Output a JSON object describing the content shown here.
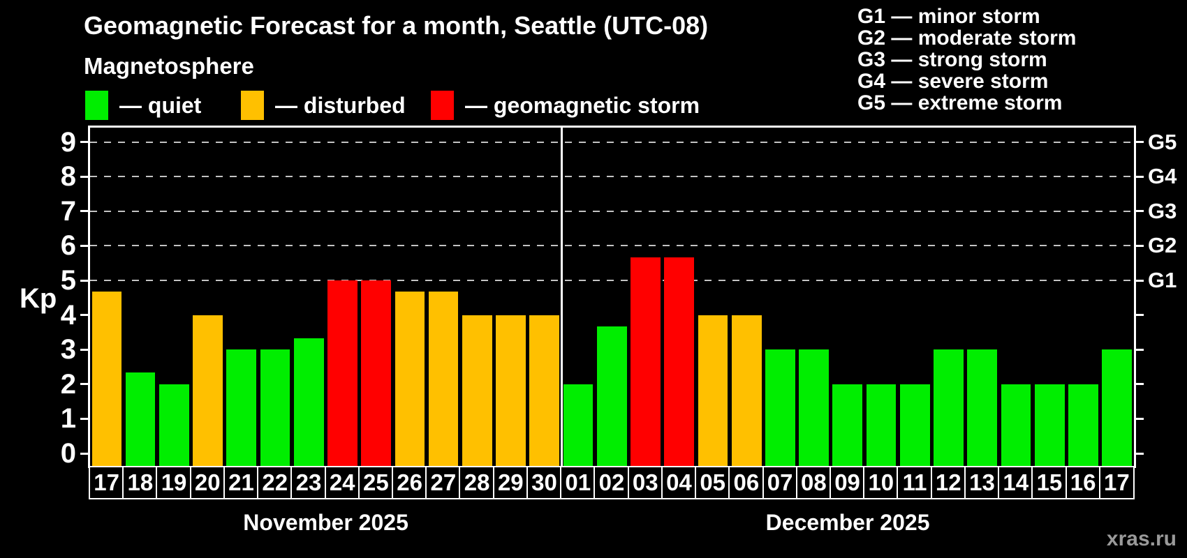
{
  "title": "Geomagnetic Forecast for a month, Seattle (UTC-08)",
  "subtitle": "Magnetosphere",
  "legend": {
    "items": [
      {
        "level": "quiet",
        "label": "— quiet",
        "color": "#00ee00"
      },
      {
        "level": "disturbed",
        "label": "— disturbed",
        "color": "#ffc000"
      },
      {
        "level": "storm",
        "label": "— geomagnetic storm",
        "color": "#ff0000"
      }
    ]
  },
  "g_legend": [
    "G1 — minor storm",
    "G2 — moderate storm",
    "G3 — strong storm",
    "G4 — severe storm",
    "G5 — extreme storm"
  ],
  "watermark": "xras.ru",
  "chart_data": {
    "type": "bar",
    "title": "Geomagnetic Forecast for a month, Seattle (UTC-08)",
    "ylabel": "Kp",
    "ylim": [
      0,
      9
    ],
    "y_ticks": [
      0,
      1,
      2,
      3,
      4,
      5,
      6,
      7,
      8,
      9
    ],
    "grid": "dashed horizontal lines at Kp 5-9 only",
    "grid_levels": [
      5,
      6,
      7,
      8,
      9
    ],
    "right_axis": [
      {
        "kp": 5,
        "label": "G1"
      },
      {
        "kp": 6,
        "label": "G2"
      },
      {
        "kp": 7,
        "label": "G3"
      },
      {
        "kp": 8,
        "label": "G4"
      },
      {
        "kp": 9,
        "label": "G5"
      }
    ],
    "level_colors": {
      "quiet": "#00ee00",
      "disturbed": "#ffc000",
      "storm": "#ff0000"
    },
    "months": [
      {
        "label": "November 2025",
        "days": [
          {
            "day": "17",
            "kp": 4.67,
            "level": "disturbed"
          },
          {
            "day": "18",
            "kp": 2.33,
            "level": "quiet"
          },
          {
            "day": "19",
            "kp": 2,
            "level": "quiet"
          },
          {
            "day": "20",
            "kp": 4,
            "level": "disturbed"
          },
          {
            "day": "21",
            "kp": 3,
            "level": "quiet"
          },
          {
            "day": "22",
            "kp": 3,
            "level": "quiet"
          },
          {
            "day": "23",
            "kp": 3.33,
            "level": "quiet"
          },
          {
            "day": "24",
            "kp": 5,
            "level": "storm"
          },
          {
            "day": "25",
            "kp": 5,
            "level": "storm"
          },
          {
            "day": "26",
            "kp": 4.67,
            "level": "disturbed"
          },
          {
            "day": "27",
            "kp": 4.67,
            "level": "disturbed"
          },
          {
            "day": "28",
            "kp": 4,
            "level": "disturbed"
          },
          {
            "day": "29",
            "kp": 4,
            "level": "disturbed"
          },
          {
            "day": "30",
            "kp": 4,
            "level": "disturbed"
          }
        ]
      },
      {
        "label": "December 2025",
        "days": [
          {
            "day": "01",
            "kp": 2,
            "level": "quiet"
          },
          {
            "day": "02",
            "kp": 3.67,
            "level": "quiet"
          },
          {
            "day": "03",
            "kp": 5.67,
            "level": "storm"
          },
          {
            "day": "04",
            "kp": 5.67,
            "level": "storm"
          },
          {
            "day": "05",
            "kp": 4,
            "level": "disturbed"
          },
          {
            "day": "06",
            "kp": 4,
            "level": "disturbed"
          },
          {
            "day": "07",
            "kp": 3,
            "level": "quiet"
          },
          {
            "day": "08",
            "kp": 3,
            "level": "quiet"
          },
          {
            "day": "09",
            "kp": 2,
            "level": "quiet"
          },
          {
            "day": "10",
            "kp": 2,
            "level": "quiet"
          },
          {
            "day": "11",
            "kp": 2,
            "level": "quiet"
          },
          {
            "day": "12",
            "kp": 3,
            "level": "quiet"
          },
          {
            "day": "13",
            "kp": 3,
            "level": "quiet"
          },
          {
            "day": "14",
            "kp": 2,
            "level": "quiet"
          },
          {
            "day": "15",
            "kp": 2,
            "level": "quiet"
          },
          {
            "day": "16",
            "kp": 2,
            "level": "quiet"
          },
          {
            "day": "17",
            "kp": 3,
            "level": "quiet"
          }
        ]
      }
    ]
  }
}
